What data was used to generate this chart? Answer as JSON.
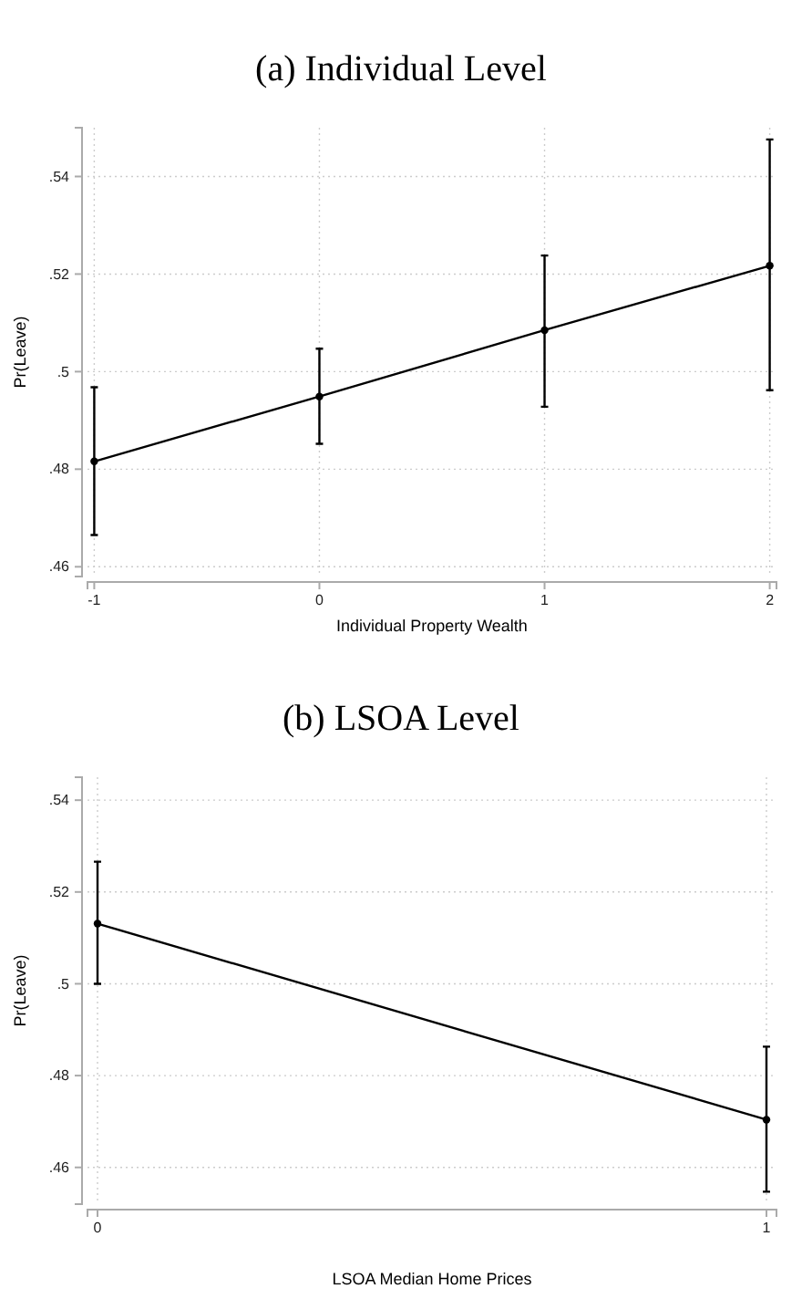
{
  "chart_data": [
    {
      "type": "line",
      "title": "(a) Individual Level",
      "xlabel": "Individual Property Wealth",
      "ylabel": "Pr(Leave)",
      "x": [
        -1,
        0,
        1,
        2
      ],
      "values": [
        0.4816,
        0.4949,
        0.5085,
        0.5217
      ],
      "errors": [
        [
          0.4665,
          0.4968
        ],
        [
          0.4852,
          0.5047
        ],
        [
          0.4928,
          0.5238
        ],
        [
          0.4962,
          0.5476
        ]
      ],
      "color": "#000000",
      "marker": "circle",
      "grid": true,
      "xlim": [
        -1.03,
        2.03
      ],
      "xticks": [
        -1,
        0,
        1,
        2
      ],
      "ylim": [
        0.458,
        0.55
      ],
      "yticks": [
        {
          "value": 0.46,
          "label": ".46"
        },
        {
          "value": 0.48,
          "label": ".48"
        },
        {
          "value": 0.5,
          "label": ".5"
        },
        {
          "value": 0.52,
          "label": ".52"
        },
        {
          "value": 0.54,
          "label": ".54"
        }
      ]
    },
    {
      "type": "line",
      "title": "(b) LSOA Level",
      "xlabel": "LSOA Median Home Prices",
      "ylabel": "Pr(Leave)",
      "x": [
        0,
        1
      ],
      "values": [
        0.5131,
        0.4704
      ],
      "errors": [
        [
          0.5,
          0.5266
        ],
        [
          0.4547,
          0.4863
        ]
      ],
      "color": "#000000",
      "marker": "circle",
      "grid": true,
      "xlim": [
        -0.015,
        1.015
      ],
      "xticks": [
        0,
        1
      ],
      "ylim": [
        0.452,
        0.545
      ],
      "yticks": [
        {
          "value": 0.46,
          "label": ".46"
        },
        {
          "value": 0.48,
          "label": ".48"
        },
        {
          "value": 0.5,
          "label": ".5"
        },
        {
          "value": 0.52,
          "label": ".52"
        },
        {
          "value": 0.54,
          "label": ".54"
        }
      ]
    }
  ]
}
